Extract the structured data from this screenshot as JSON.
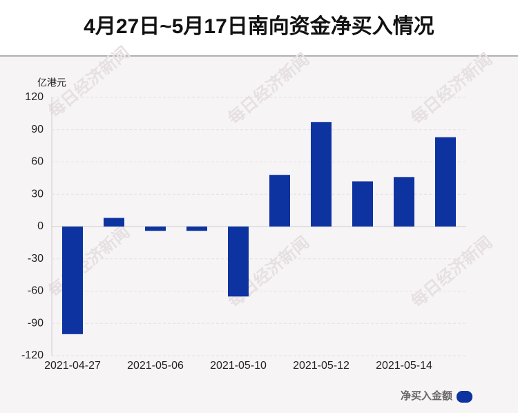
{
  "chart_data": {
    "type": "bar",
    "title": "4月27日~5月17日南向资金净买入情况",
    "y_unit": "亿港元",
    "watermark": "每日经济新闻",
    "categories": [
      "2021-04-27",
      null,
      "2021-05-06",
      null,
      "2021-05-10",
      null,
      "2021-05-12",
      null,
      "2021-05-14",
      null
    ],
    "series": [
      {
        "name": "净买入金额",
        "color": "#0d33a0",
        "values": [
          -100,
          8,
          -4,
          -4,
          -65,
          48,
          97,
          42,
          46,
          83
        ]
      }
    ],
    "ylim": [
      -120,
      120
    ],
    "yticks": [
      -120,
      -90,
      -60,
      -30,
      0,
      30,
      60,
      90,
      120
    ],
    "grid": true,
    "legend": "bottom-right"
  }
}
